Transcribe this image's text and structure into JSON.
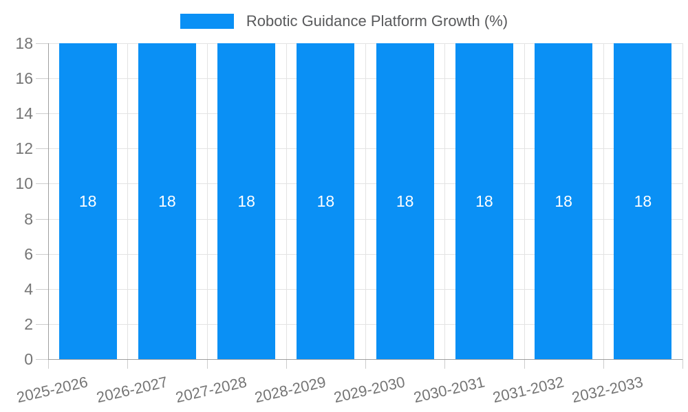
{
  "legend": {
    "label": "Robotic Guidance Platform Growth (%)"
  },
  "colors": {
    "bar": "#0a90f5",
    "grid": "#e3e3e3",
    "axis": "#9e9e9e",
    "tick": "#cccccc",
    "tick_text": "#757575",
    "title_text": "#58595b",
    "bar_label_text": "#ffffff",
    "background": "#ffffff"
  },
  "chart_data": {
    "type": "bar",
    "title": "Robotic Guidance Platform Growth (%)",
    "series": [
      {
        "name": "Robotic Guidance Platform Growth (%)",
        "values": [
          18,
          18,
          18,
          18,
          18,
          18,
          18,
          18
        ]
      }
    ],
    "categories": [
      "2025-2026",
      "2026-2027",
      "2027-2028",
      "2028-2029",
      "2029-2030",
      "2030-2031",
      "2031-2032",
      "2032-2033"
    ],
    "xlabel": "",
    "ylabel": "",
    "ylim": [
      0,
      18
    ],
    "yticks": [
      0,
      2,
      4,
      6,
      8,
      10,
      12,
      14,
      16,
      18
    ],
    "grid": "on",
    "legend_position": "top-center",
    "bar_value_labels_shown": true,
    "x_label_rotation_deg": -13
  }
}
